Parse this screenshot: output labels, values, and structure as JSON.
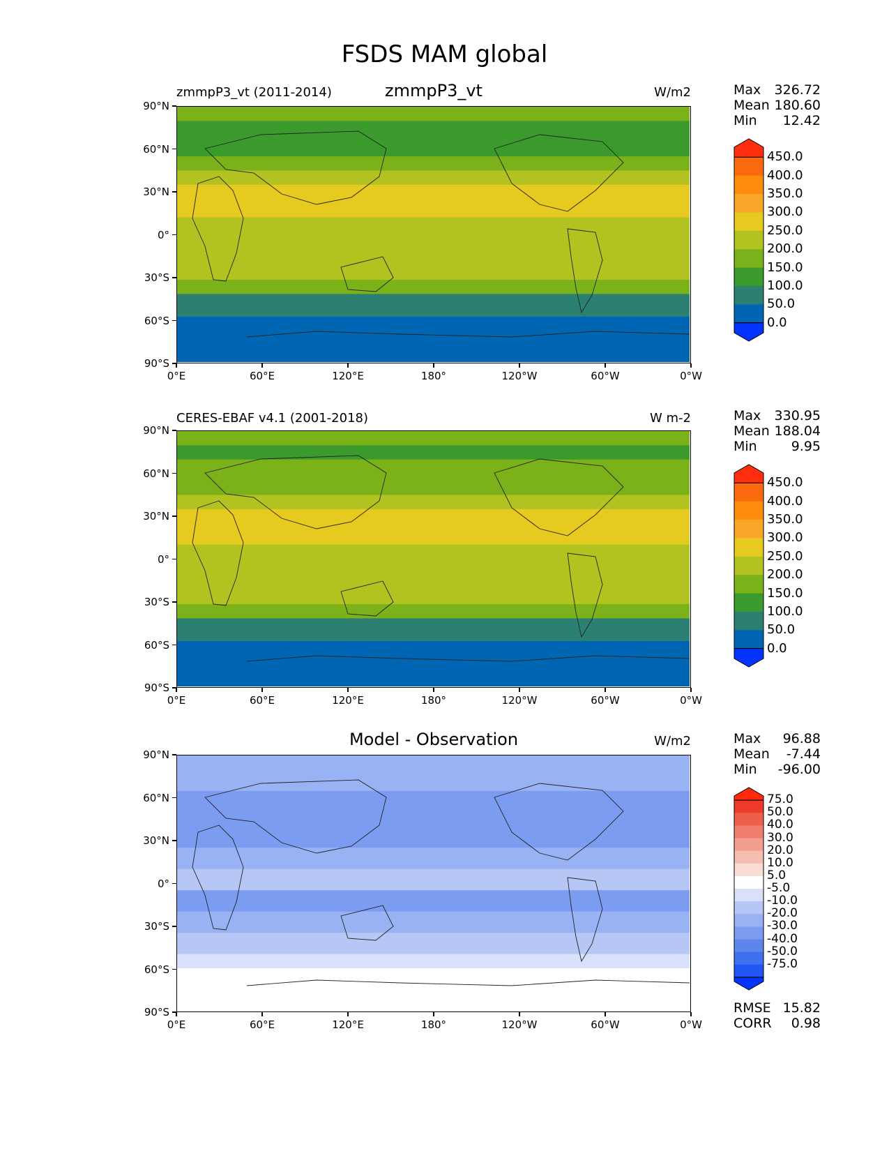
{
  "figure_title": "FSDS MAM global",
  "chart_data": [
    {
      "type": "heatmap",
      "panel": "test",
      "title_left": "zmmpP3_vt (2011-2014)",
      "title_center": "zmmpP3_vt",
      "units": "W/m2",
      "x_ticks": [
        "0°E",
        "60°E",
        "120°E",
        "180°",
        "120°W",
        "60°W",
        "0°W"
      ],
      "y_ticks": [
        "90°N",
        "60°N",
        "30°N",
        "0°",
        "30°S",
        "60°S",
        "90°S"
      ],
      "xlim": [
        0,
        360
      ],
      "ylim": [
        -90,
        90
      ],
      "stats": {
        "max_label": "Max",
        "max": "326.72",
        "mean_label": "Mean",
        "mean": "180.60",
        "min_label": "Min",
        "min": "12.42"
      },
      "colorbar": {
        "levels": [
          "450.0",
          "400.0",
          "350.0",
          "300.0",
          "250.0",
          "200.0",
          "150.0",
          "100.0",
          "50.0",
          "0.0"
        ],
        "colors": [
          "#0433FF",
          "#0066B3",
          "#2B8072",
          "#3A9B2C",
          "#7BB21A",
          "#B2C220",
          "#E6CA20",
          "#F8A628",
          "#FF8C0C",
          "#FC6A10",
          "#FF2E0F"
        ]
      },
      "zonal_bands_lat": [
        90,
        80,
        70,
        55,
        45,
        35,
        25,
        12,
        -5,
        -20,
        -32,
        -42,
        -58,
        -90
      ],
      "zonal_bands_value": [
        150,
        110,
        140,
        170,
        210,
        270,
        260,
        220,
        230,
        200,
        150,
        95,
        40
      ]
    },
    {
      "type": "heatmap",
      "panel": "reference",
      "title_left": "CERES-EBAF v4.1 (2001-2018)",
      "title_center": "",
      "units": "W m-2",
      "x_ticks": [
        "0°E",
        "60°E",
        "120°E",
        "180°",
        "120°W",
        "60°W",
        "0°W"
      ],
      "y_ticks": [
        "90°N",
        "60°N",
        "30°N",
        "0°",
        "30°S",
        "60°S",
        "90°S"
      ],
      "xlim": [
        0,
        360
      ],
      "ylim": [
        -90,
        90
      ],
      "stats": {
        "max_label": "Max",
        "max": "330.95",
        "mean_label": "Mean",
        "mean": "188.04",
        "min_label": "Min",
        "min": "9.95"
      },
      "colorbar": {
        "levels": [
          "450.0",
          "400.0",
          "350.0",
          "300.0",
          "250.0",
          "200.0",
          "150.0",
          "100.0",
          "50.0",
          "0.0"
        ],
        "colors": [
          "#0433FF",
          "#0066B3",
          "#2B8072",
          "#3A9B2C",
          "#7BB21A",
          "#B2C220",
          "#E6CA20",
          "#F8A628",
          "#FF8C0C",
          "#FC6A10",
          "#FF2E0F"
        ]
      },
      "zonal_bands_lat": [
        90,
        80,
        70,
        55,
        45,
        35,
        22,
        10,
        -8,
        -22,
        -32,
        -42,
        -58,
        -90
      ],
      "zonal_bands_value": [
        160,
        120,
        150,
        180,
        220,
        275,
        265,
        230,
        240,
        205,
        155,
        95,
        40
      ]
    },
    {
      "type": "heatmap",
      "panel": "difference",
      "title_left": "",
      "title_center": "Model - Observation",
      "units": "W/m2",
      "x_ticks": [
        "0°E",
        "60°E",
        "120°E",
        "180°",
        "120°W",
        "60°W",
        "0°W"
      ],
      "y_ticks": [
        "90°N",
        "60°N",
        "30°N",
        "0°",
        "30°S",
        "60°S",
        "90°S"
      ],
      "xlim": [
        0,
        360
      ],
      "ylim": [
        -90,
        90
      ],
      "stats": {
        "max_label": "Max",
        "max": "96.88",
        "mean_label": "Mean",
        "mean": "-7.44",
        "min_label": "Min",
        "min": "-96.00"
      },
      "extra_stats": {
        "rmse_label": "RMSE",
        "rmse": "15.82",
        "corr_label": "CORR",
        "corr": "0.98"
      },
      "colorbar": {
        "levels": [
          "75.0",
          "50.0",
          "40.0",
          "30.0",
          "20.0",
          "10.0",
          "5.0",
          "-5.0",
          "-10.0",
          "-20.0",
          "-30.0",
          "-40.0",
          "-50.0",
          "-75.0"
        ],
        "colors": [
          "#0433FF",
          "#2155F5",
          "#3F70F0",
          "#5C86EE",
          "#7B9CF0",
          "#98B2F4",
          "#B6C7F6",
          "#D8E0FA",
          "#FFFFFF",
          "#FADCD6",
          "#F6BDB1",
          "#F39E8E",
          "#F07E6C",
          "#EE5E4C",
          "#EE3A2A",
          "#FF2A0A"
        ]
      },
      "zonal_bands_lat": [
        90,
        80,
        65,
        50,
        40,
        25,
        10,
        -5,
        -20,
        -35,
        -50,
        -60,
        -70,
        -90
      ],
      "zonal_bands_value": [
        -12,
        -20,
        -28,
        -25,
        -22,
        -15,
        -10,
        -22,
        -15,
        -10,
        -5,
        8,
        5
      ]
    }
  ]
}
